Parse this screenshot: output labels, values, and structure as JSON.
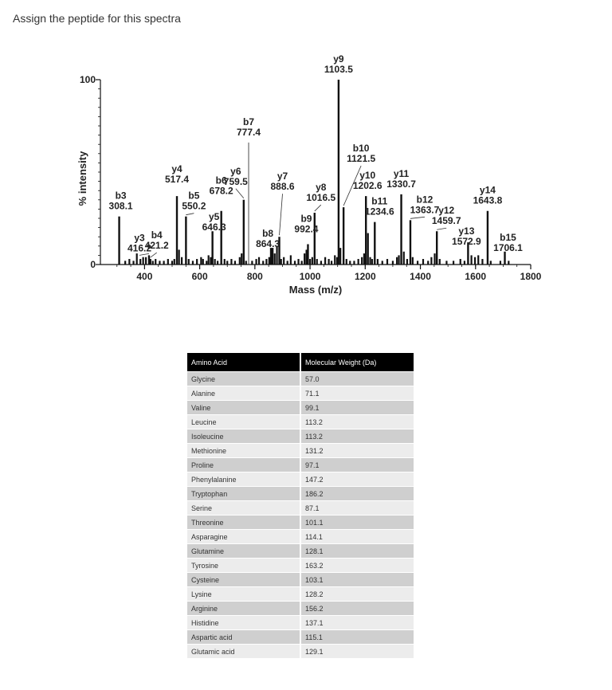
{
  "question": "Assign the peptide for this spectra",
  "chart_data": {
    "type": "bar",
    "xlabel": "Mass (m/z)",
    "ylabel": "% intensity",
    "xlim": [
      240,
      1800
    ],
    "ylim": [
      0,
      100
    ],
    "xticks": [
      400,
      600,
      800,
      1000,
      1200,
      1400,
      1600,
      1800
    ],
    "yticks": [
      0,
      100
    ],
    "peaks": [
      {
        "ion": "b3",
        "mz": 308.1,
        "mz_label": "308.1",
        "intensity": 26
      },
      {
        "ion": "y3",
        "mz": 416.2,
        "mz_label": "416.2",
        "intensity": 5
      },
      {
        "ion": "b4",
        "mz": 421.2,
        "mz_label": "421.2",
        "intensity": 3
      },
      {
        "ion": "y4",
        "mz": 517.4,
        "mz_label": "517.4",
        "intensity": 37
      },
      {
        "ion": "b5",
        "mz": 550.2,
        "mz_label": "550.2",
        "intensity": 26
      },
      {
        "ion": "y5",
        "mz": 646.3,
        "mz_label": "646.3",
        "intensity": 18
      },
      {
        "ion": "b6",
        "mz": 678.2,
        "mz_label": "678.2",
        "intensity": 29
      },
      {
        "ion": "y6",
        "mz": 759.5,
        "mz_label": "759.5",
        "intensity": 35
      },
      {
        "ion": "b7",
        "mz": 777.4,
        "mz_label": "777.4",
        "intensity": 66
      },
      {
        "ion": "b8",
        "mz": 864.3,
        "mz_label": "864.3",
        "intensity": 9
      },
      {
        "ion": "y7",
        "mz": 888.6,
        "mz_label": "888.6",
        "intensity": 15
      },
      {
        "ion": "b9",
        "mz": 992.4,
        "mz_label": "992.4",
        "intensity": 11
      },
      {
        "ion": "y8",
        "mz": 1016.5,
        "mz_label": "1016.5",
        "intensity": 28
      },
      {
        "ion": "y9",
        "mz": 1103.5,
        "mz_label": "1103.5",
        "intensity": 100
      },
      {
        "ion": "b10",
        "mz": 1121.5,
        "mz_label": "1121.5",
        "intensity": 31
      },
      {
        "ion": "y10",
        "mz": 1202.6,
        "mz_label": "1202.6",
        "intensity": 37
      },
      {
        "ion": "b11",
        "mz": 1234.6,
        "mz_label": "1234.6",
        "intensity": 23
      },
      {
        "ion": "y11",
        "mz": 1330.7,
        "mz_label": "1330.7",
        "intensity": 38
      },
      {
        "ion": "b12",
        "mz": 1363.7,
        "mz_label": "1363.7",
        "intensity": 24
      },
      {
        "ion": "y12",
        "mz": 1459.7,
        "mz_label": "1459.7",
        "intensity": 18
      },
      {
        "ion": "y13",
        "mz": 1572.9,
        "mz_label": "1572.9",
        "intensity": 12
      },
      {
        "ion": "y14",
        "mz": 1643.8,
        "mz_label": "1643.8",
        "intensity": 29
      },
      {
        "ion": "b15",
        "mz": 1706.1,
        "mz_label": "1706.1",
        "intensity": 7
      }
    ],
    "noise_peaks": [
      [
        330,
        2
      ],
      [
        345,
        3
      ],
      [
        360,
        2
      ],
      [
        372,
        6
      ],
      [
        385,
        3
      ],
      [
        395,
        4
      ],
      [
        405,
        4
      ],
      [
        430,
        2
      ],
      [
        440,
        3
      ],
      [
        455,
        2
      ],
      [
        470,
        2
      ],
      [
        485,
        3
      ],
      [
        500,
        2
      ],
      [
        508,
        3
      ],
      [
        525,
        8
      ],
      [
        535,
        4
      ],
      [
        560,
        3
      ],
      [
        575,
        2
      ],
      [
        590,
        3
      ],
      [
        605,
        4
      ],
      [
        612,
        3
      ],
      [
        625,
        2
      ],
      [
        632,
        5
      ],
      [
        640,
        4
      ],
      [
        655,
        3
      ],
      [
        665,
        2
      ],
      [
        690,
        3
      ],
      [
        700,
        2
      ],
      [
        715,
        3
      ],
      [
        728,
        2
      ],
      [
        745,
        4
      ],
      [
        752,
        6
      ],
      [
        768,
        2
      ],
      [
        790,
        2
      ],
      [
        805,
        3
      ],
      [
        815,
        4
      ],
      [
        830,
        2
      ],
      [
        842,
        3
      ],
      [
        852,
        4
      ],
      [
        858,
        9
      ],
      [
        872,
        6
      ],
      [
        880,
        10
      ],
      [
        895,
        3
      ],
      [
        905,
        4
      ],
      [
        918,
        2
      ],
      [
        930,
        5
      ],
      [
        945,
        2
      ],
      [
        958,
        3
      ],
      [
        970,
        2
      ],
      [
        980,
        6
      ],
      [
        987,
        8
      ],
      [
        1000,
        3
      ],
      [
        1008,
        4
      ],
      [
        1025,
        3
      ],
      [
        1040,
        2
      ],
      [
        1055,
        4
      ],
      [
        1068,
        3
      ],
      [
        1078,
        2
      ],
      [
        1090,
        5
      ],
      [
        1098,
        4
      ],
      [
        1110,
        9
      ],
      [
        1132,
        3
      ],
      [
        1145,
        2
      ],
      [
        1160,
        2
      ],
      [
        1175,
        3
      ],
      [
        1188,
        4
      ],
      [
        1196,
        6
      ],
      [
        1210,
        17
      ],
      [
        1218,
        4
      ],
      [
        1225,
        3
      ],
      [
        1245,
        3
      ],
      [
        1262,
        2
      ],
      [
        1280,
        3
      ],
      [
        1300,
        2
      ],
      [
        1315,
        4
      ],
      [
        1322,
        5
      ],
      [
        1340,
        7
      ],
      [
        1352,
        3
      ],
      [
        1372,
        4
      ],
      [
        1390,
        2
      ],
      [
        1410,
        3
      ],
      [
        1428,
        2
      ],
      [
        1440,
        4
      ],
      [
        1452,
        6
      ],
      [
        1470,
        3
      ],
      [
        1495,
        2
      ],
      [
        1520,
        2
      ],
      [
        1545,
        3
      ],
      [
        1560,
        2
      ],
      [
        1585,
        5
      ],
      [
        1598,
        4
      ],
      [
        1610,
        5
      ],
      [
        1625,
        3
      ],
      [
        1655,
        2
      ],
      [
        1690,
        2
      ],
      [
        1720,
        2
      ]
    ]
  },
  "amino_table": {
    "headers": [
      "Amino Acid",
      "Molecular Weight (Da)"
    ],
    "rows": [
      [
        "Glycine",
        "57.0"
      ],
      [
        "Alanine",
        "71.1"
      ],
      [
        "Valine",
        "99.1"
      ],
      [
        "Leucine",
        "113.2"
      ],
      [
        "Isoleucine",
        "113.2"
      ],
      [
        "Methionine",
        "131.2"
      ],
      [
        "Proline",
        "97.1"
      ],
      [
        "Phenylalanine",
        "147.2"
      ],
      [
        "Tryptophan",
        "186.2"
      ],
      [
        "Serine",
        "87.1"
      ],
      [
        "Threonine",
        "101.1"
      ],
      [
        "Asparagine",
        "114.1"
      ],
      [
        "Glutamine",
        "128.1"
      ],
      [
        "Tyrosine",
        "163.2"
      ],
      [
        "Cysteine",
        "103.1"
      ],
      [
        "Lysine",
        "128.2"
      ],
      [
        "Arginine",
        "156.2"
      ],
      [
        "Histidine",
        "137.1"
      ],
      [
        "Aspartic acid",
        "115.1"
      ],
      [
        "Glutamic acid",
        "129.1"
      ]
    ]
  }
}
